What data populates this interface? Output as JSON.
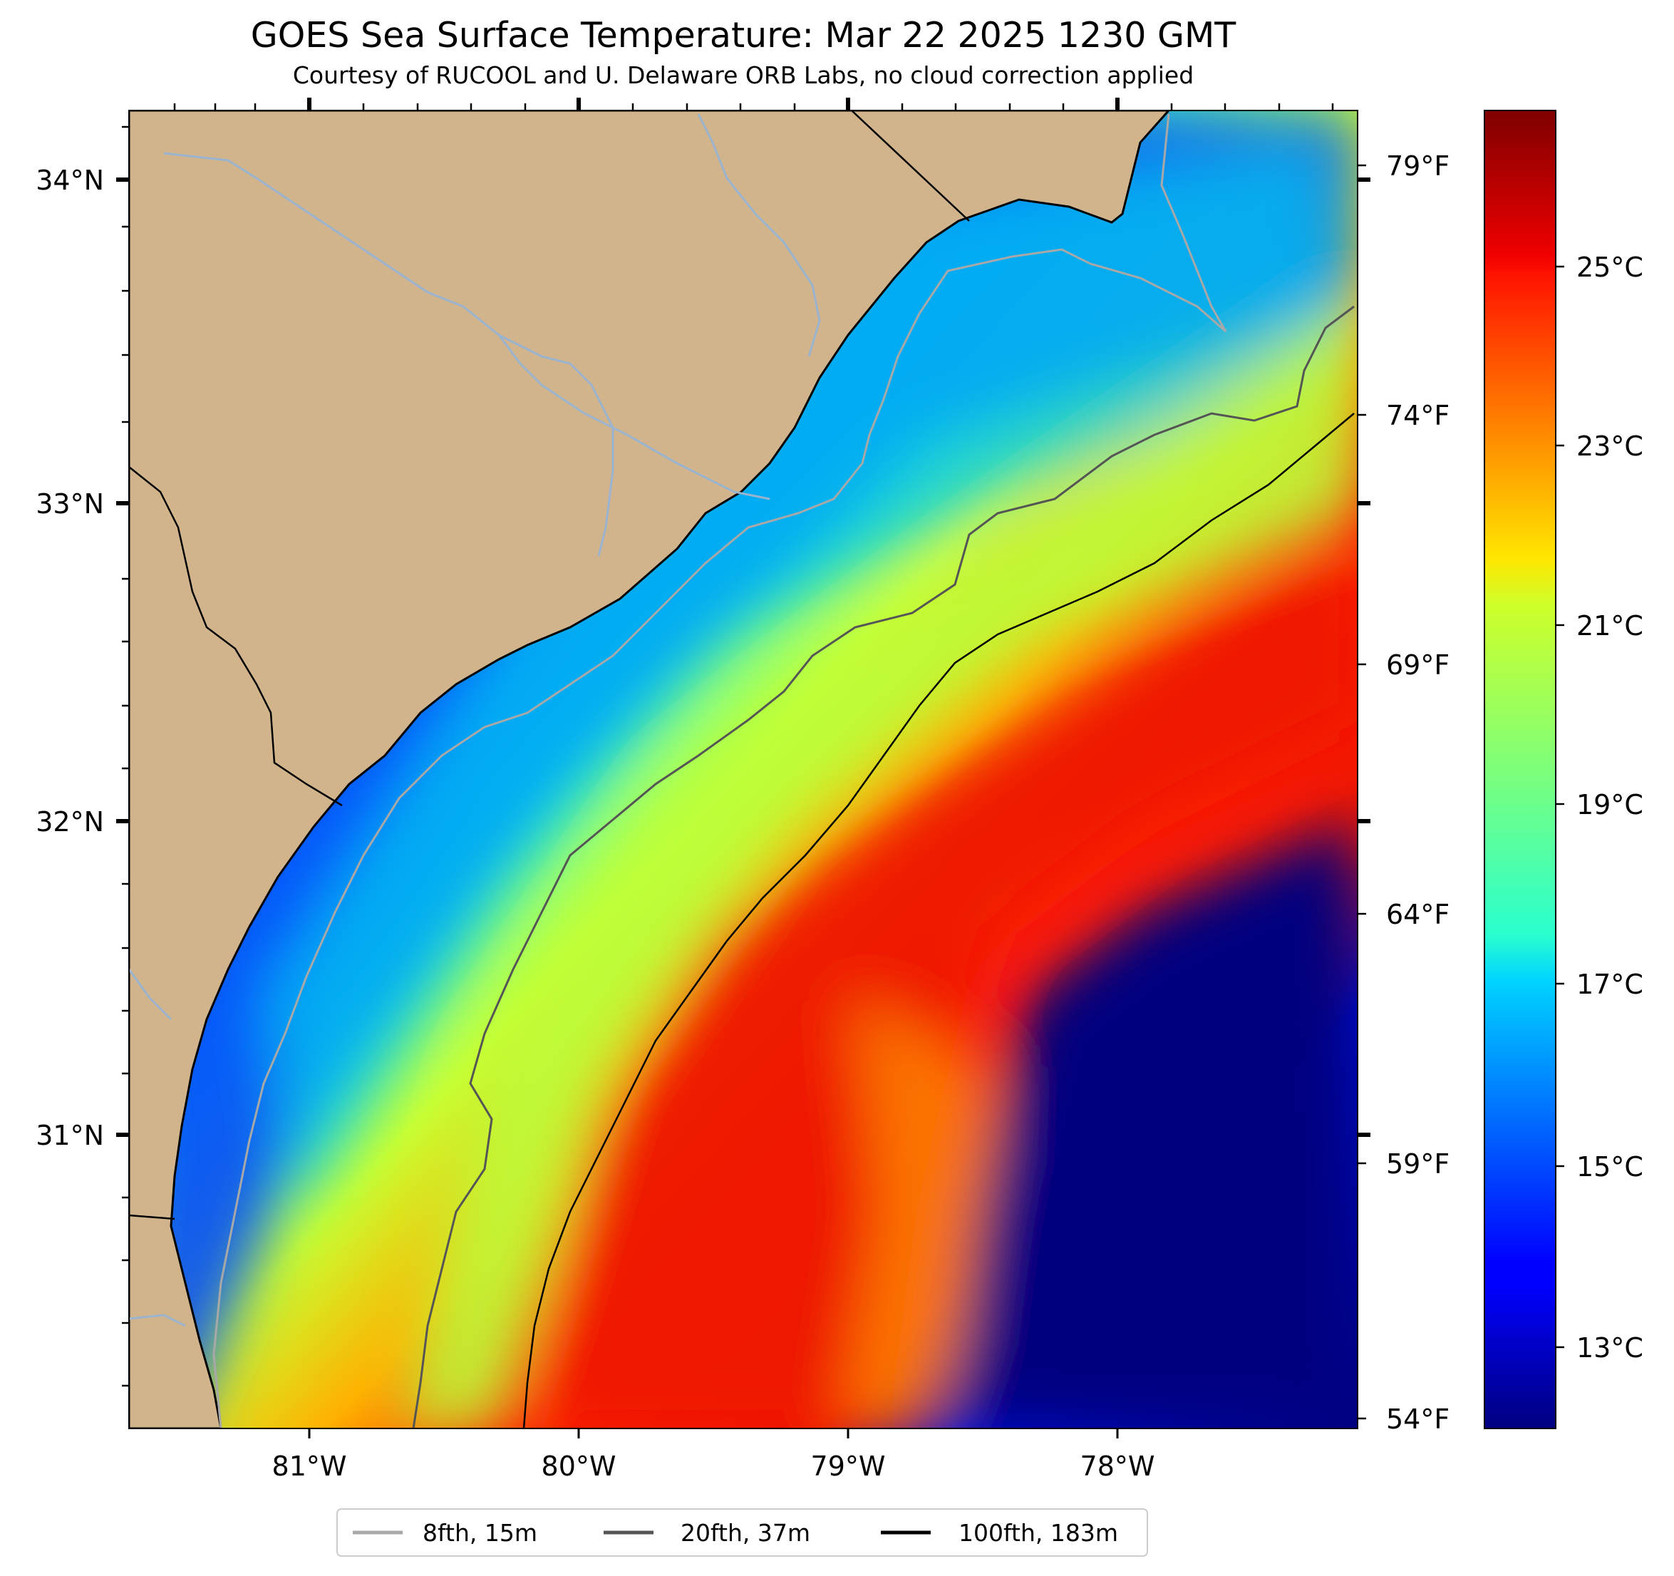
{
  "title": "GOES Sea Surface Temperature: Mar 22 2025 1230 GMT",
  "subtitle": "Courtesy of RUCOOL and U. Delaware ORB Labs, no cloud correction applied",
  "axes": {
    "x_ticks": [
      "81°W",
      "80°W",
      "79°W",
      "78°W"
    ],
    "y_ticks": [
      "34°N",
      "33°N",
      "32°N",
      "31°N"
    ],
    "f_ticks": [
      "79°F",
      "74°F",
      "69°F",
      "64°F",
      "59°F",
      "54°F"
    ]
  },
  "colorbar": {
    "labels": [
      "25°C",
      "23°C",
      "21°C",
      "19°C",
      "17°C",
      "15°C",
      "13°C"
    ],
    "colormap": "jet"
  },
  "legend": {
    "items": [
      {
        "label": "8fth, 15m",
        "color": "#a8a8a8"
      },
      {
        "label": "20fth, 37m",
        "color": "#555555"
      },
      {
        "label": "100fth, 183m",
        "color": "#000000"
      }
    ]
  },
  "colors": {
    "land": "#d2b48c",
    "river": "#9ab4d0",
    "coastline": "#000000",
    "cold": "#00007f",
    "warm": "#ee1800"
  },
  "chart_data": {
    "type": "heatmap",
    "variable": "sea surface temperature",
    "units": "°C",
    "x_range_lon": [
      -81.67,
      -77.1
    ],
    "y_range_lat": [
      29.9,
      34.22
    ],
    "colorbar_range_c": [
      12,
      27
    ],
    "colorbar_ticks_c": [
      13,
      15,
      17,
      19,
      21,
      23,
      25
    ],
    "fahrenheit_ticks_f": [
      54,
      59,
      64,
      69,
      74,
      79
    ],
    "isobaths": [
      "8fth, 15m",
      "20fth, 37m",
      "100fth, 183m"
    ]
  }
}
